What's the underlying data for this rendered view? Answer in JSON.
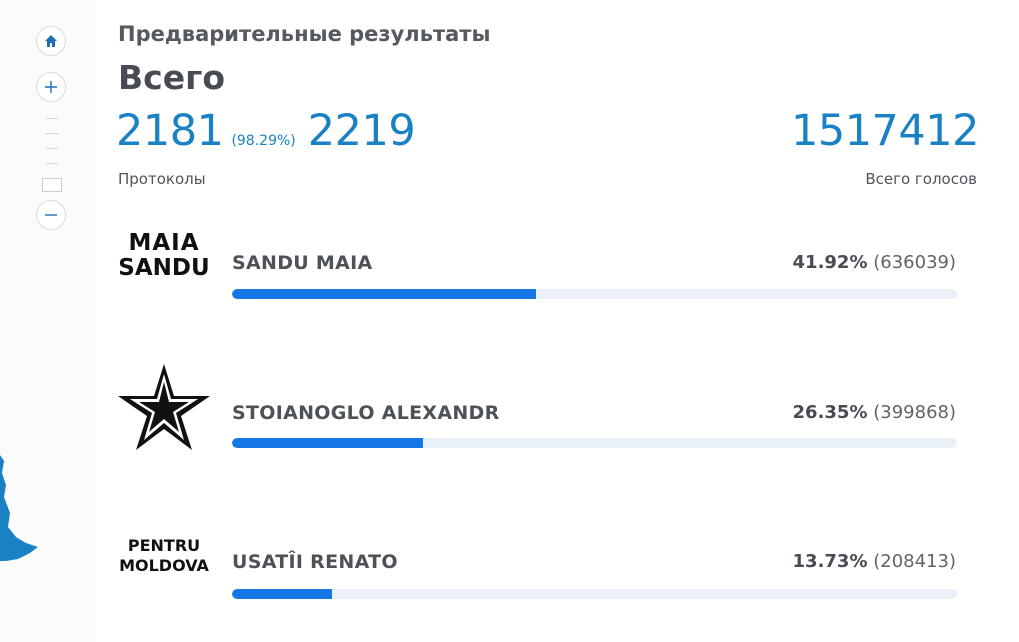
{
  "header": {
    "subtitle": "Предварительные результаты",
    "title": "Всего"
  },
  "stats": {
    "protocols_counted": "2181",
    "protocols_pct": "(98.29%)",
    "protocols_total": "2219",
    "protocols_label": "Протоколы",
    "total_votes": "1517412",
    "total_votes_label": "Всего голосов"
  },
  "candidates": [
    {
      "name": "SANDU MAIA",
      "percent": "41.92%",
      "count": "(636039)",
      "share": 0.4192,
      "logo_text": [
        "MAIA",
        "SANDU"
      ]
    },
    {
      "name": "STOIANOGLO ALEXANDR",
      "percent": "26.35%",
      "count": "(399868)",
      "share": 0.2635,
      "logo": "star-icon"
    },
    {
      "name": "USATÎI RENATO",
      "percent": "13.73%",
      "count": "(208413)",
      "share": 0.1373,
      "logo_text": [
        "PENTRU",
        "MOLDOVA"
      ]
    }
  ],
  "colors": {
    "accent": "#1a82c4",
    "bar": "#1578e6",
    "track": "#ebf1f8"
  }
}
